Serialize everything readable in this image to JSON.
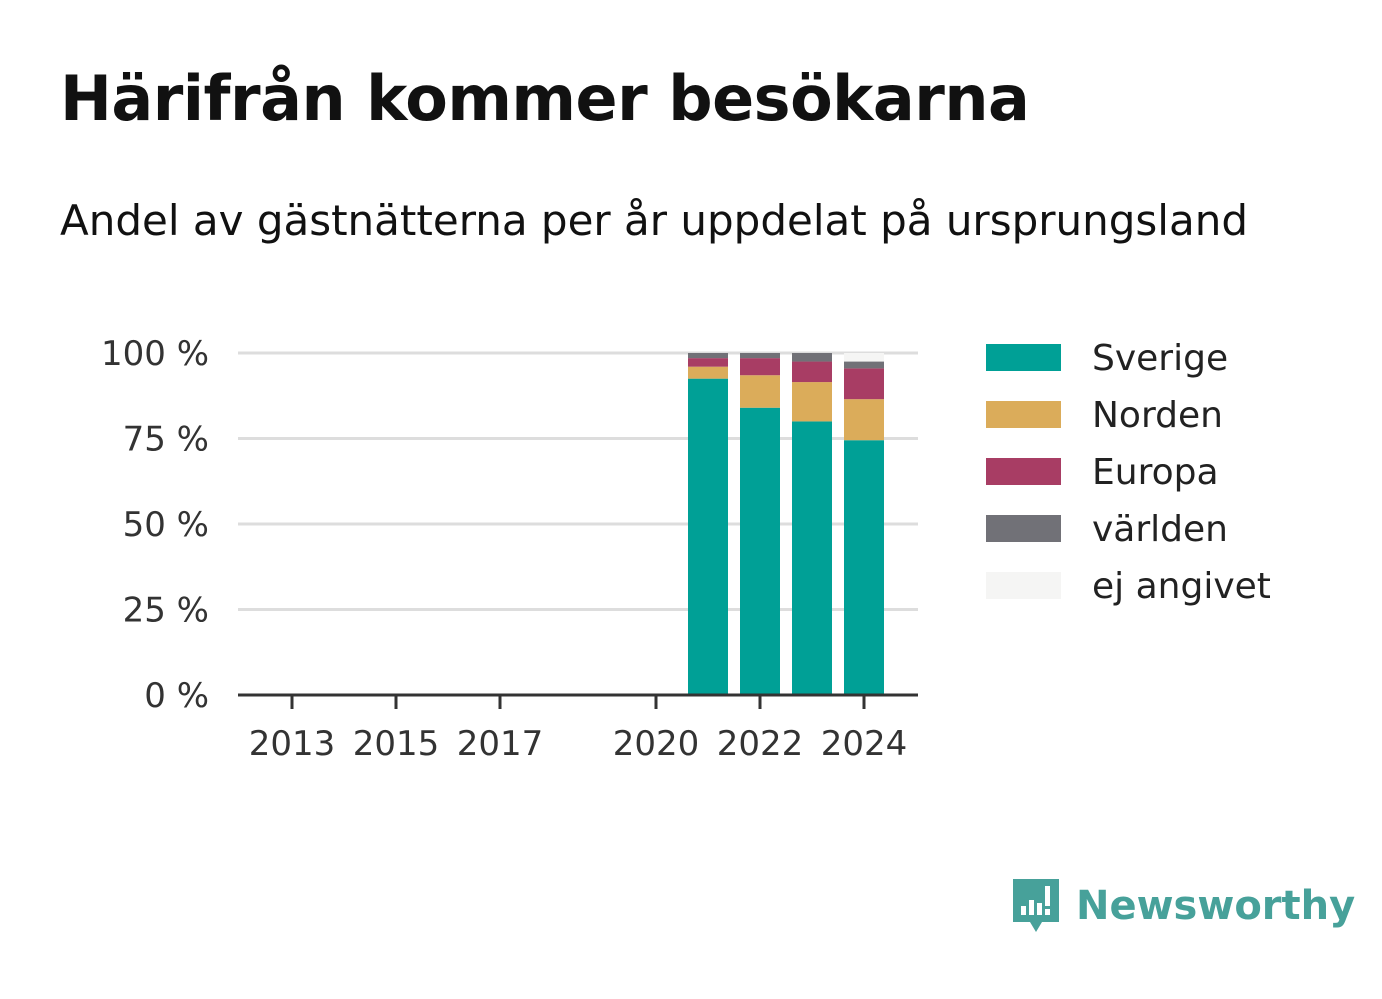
{
  "title": "Härifrån kommer besökarna",
  "subtitle": "Andel av gästnätterna per år uppdelat på ursprungsland",
  "brand": {
    "name": "Newsworthy",
    "icon": "newsworthy-logo-icon",
    "color": "#47a19a"
  },
  "chart_data": {
    "type": "bar",
    "stacked": true,
    "x": [
      2013,
      2014,
      2015,
      2016,
      2017,
      2018,
      2019,
      2020,
      2021,
      2022,
      2023,
      2024
    ],
    "x_ticks": [
      2013,
      2015,
      2017,
      2020,
      2022,
      2024
    ],
    "x_tick_labels": [
      "2013",
      "2015",
      "2017",
      "2020",
      "2022",
      "2024"
    ],
    "y_ticks": [
      0,
      25,
      50,
      75,
      100
    ],
    "y_tick_labels": [
      "0 %",
      "25 %",
      "50 %",
      "75 %",
      "100 %"
    ],
    "ylim": [
      0,
      100
    ],
    "grid": true,
    "legend_position": "right",
    "series": [
      {
        "name": "Sverige",
        "color": "#00a096",
        "values": [
          null,
          null,
          null,
          null,
          null,
          null,
          null,
          null,
          92.5,
          84,
          80,
          74.5
        ]
      },
      {
        "name": "Norden",
        "color": "#dbac5a",
        "values": [
          null,
          null,
          null,
          null,
          null,
          null,
          null,
          null,
          3.5,
          9.5,
          11.5,
          12
        ]
      },
      {
        "name": "Europa",
        "color": "#a83d64",
        "values": [
          null,
          null,
          null,
          null,
          null,
          null,
          null,
          null,
          2.5,
          5,
          6,
          9
        ]
      },
      {
        "name": "världen",
        "color": "#717177",
        "values": [
          null,
          null,
          null,
          null,
          null,
          null,
          null,
          null,
          1.5,
          1.5,
          2.5,
          2
        ]
      },
      {
        "name": "ej angivet",
        "color": "#f5f5f4",
        "values": [
          null,
          null,
          null,
          null,
          null,
          null,
          null,
          null,
          0,
          0,
          0,
          2.5
        ]
      }
    ]
  }
}
